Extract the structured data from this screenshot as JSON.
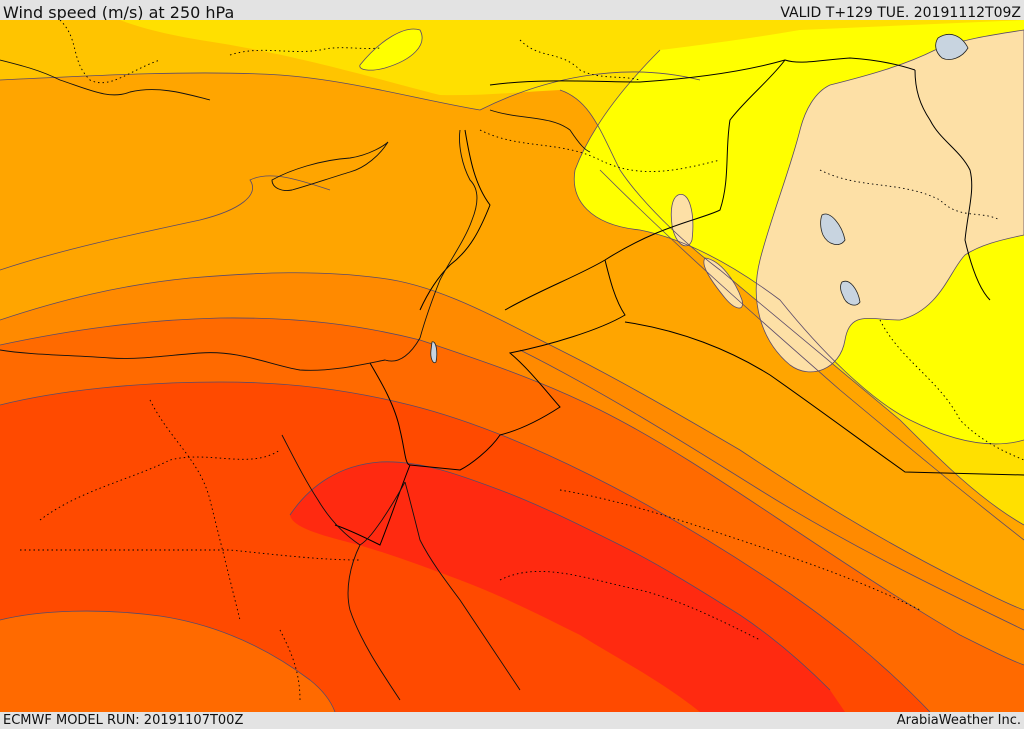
{
  "header": {
    "title": "Wind speed (m/s) at 250 hPa",
    "valid_time": "VALID T+129 TUE. 20191112T09Z"
  },
  "footer": {
    "model_run": "ECMWF MODEL RUN: 20191107T00Z",
    "credit": "ArabiaWeather Inc."
  },
  "colors": {
    "band_slowest": "#fde0a6",
    "band_light_yellow": "#ffff00",
    "band_yellow": "#ffe000",
    "band_gold": "#ffc400",
    "band_amber": "#ffa500",
    "band_orange": "#ff8a00",
    "band_dark_orange": "#ff6a00",
    "band_red_orange": "#ff4a00",
    "band_jet_core": "#ff2a10",
    "contour_line": "#5a4a6a",
    "border_line": "#000000",
    "water_body": "#c8d4e0"
  }
}
